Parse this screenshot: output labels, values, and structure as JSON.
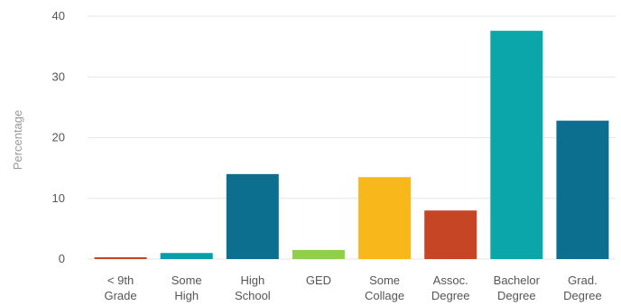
{
  "chart_data": {
    "type": "bar",
    "title": "",
    "xlabel": "",
    "ylabel": "Percentage",
    "ylim": [
      0,
      40
    ],
    "yticks": [
      0,
      10,
      20,
      30,
      40
    ],
    "grid": true,
    "legend": "none",
    "categories": [
      [
        "< 9th",
        "Grade"
      ],
      [
        "Some",
        "High"
      ],
      [
        "High",
        "School"
      ],
      [
        "GED"
      ],
      [
        "Some",
        "Collage"
      ],
      [
        "Assoc.",
        "Degree"
      ],
      [
        "Bachelor",
        "Degree"
      ],
      [
        "Grad.",
        "Degree"
      ]
    ],
    "values": [
      0.3,
      1.0,
      14.0,
      1.5,
      13.5,
      8.0,
      37.6,
      22.8
    ],
    "colors": [
      "#c64524",
      "#0a9eaa",
      "#0d6f8f",
      "#8fcf4c",
      "#f8b81c",
      "#c64524",
      "#0aa6aa",
      "#0d6f8f"
    ]
  }
}
